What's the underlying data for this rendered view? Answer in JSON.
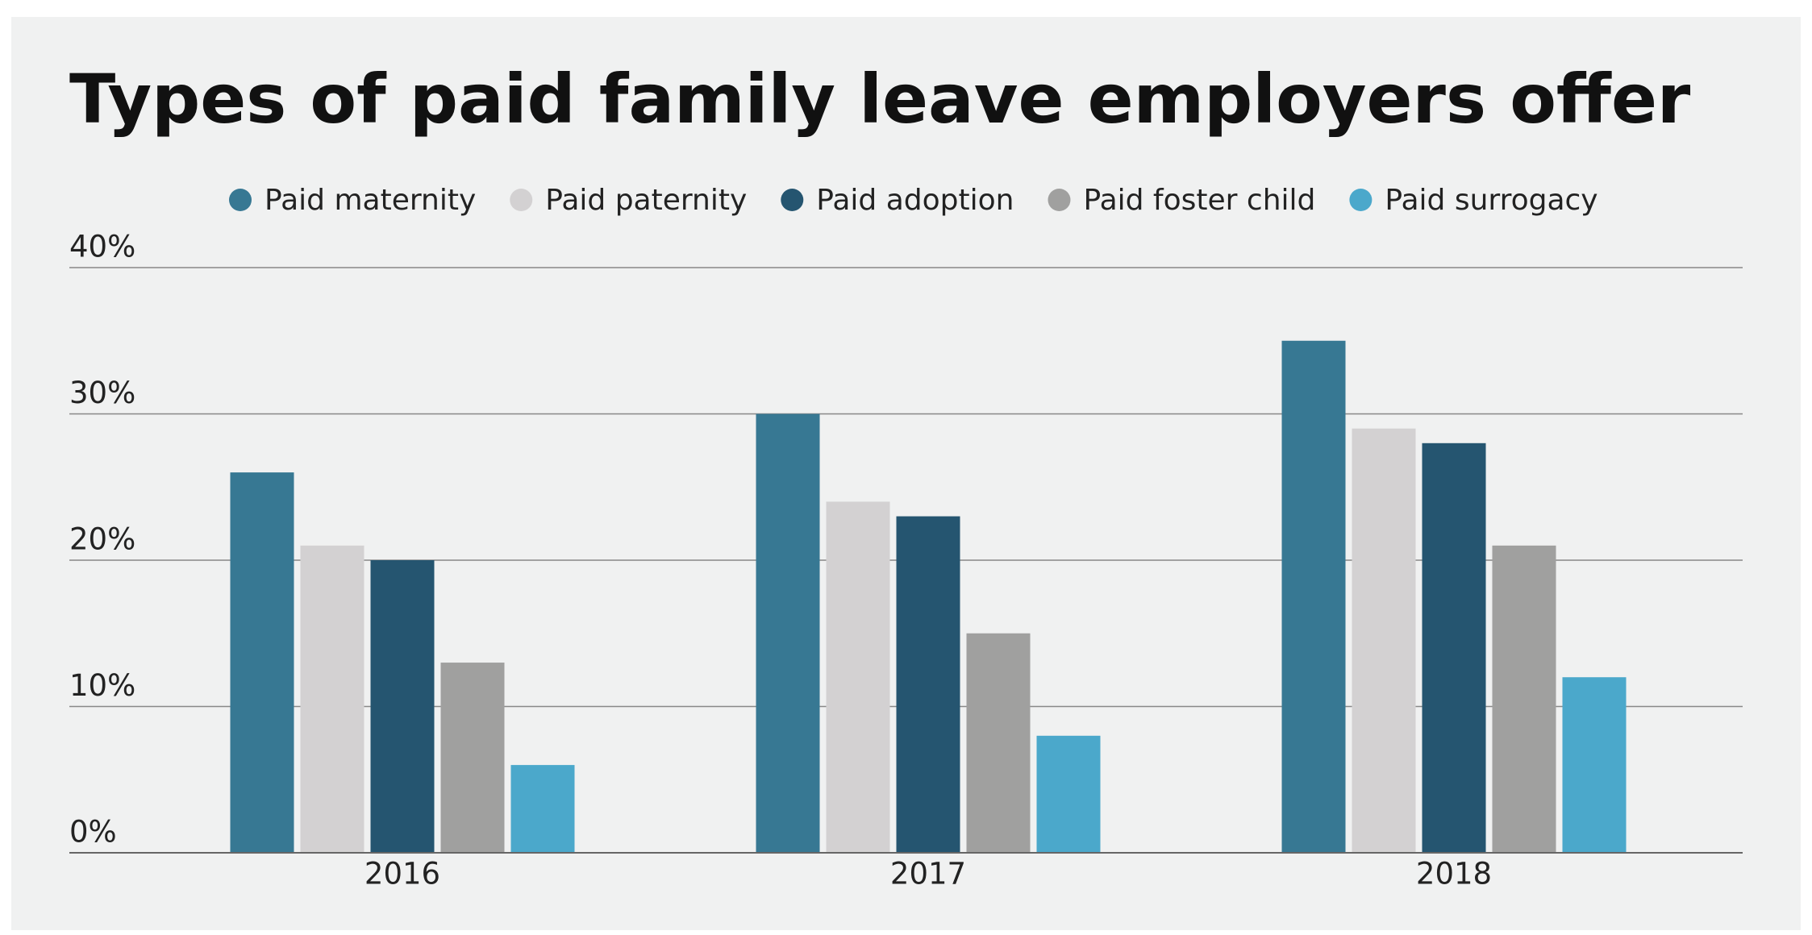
{
  "chart_data": {
    "type": "bar",
    "title": "Types of paid family leave employers offer",
    "categories": [
      "2016",
      "2017",
      "2018"
    ],
    "series": [
      {
        "name": "Paid maternity",
        "color": "#377893",
        "values": [
          26,
          30,
          35
        ]
      },
      {
        "name": "Paid paternity",
        "color": "#d3d1d2",
        "values": [
          21,
          24,
          29
        ]
      },
      {
        "name": "Paid adoption",
        "color": "#255570",
        "values": [
          20,
          23,
          28
        ]
      },
      {
        "name": "Paid foster child",
        "color": "#a0a09f",
        "values": [
          13,
          15,
          21
        ]
      },
      {
        "name": "Paid surrogacy",
        "color": "#4ba8cb",
        "values": [
          6,
          8,
          12
        ]
      }
    ],
    "ylim": [
      0,
      40
    ],
    "yticks": [
      {
        "value": 0,
        "label": "0%"
      },
      {
        "value": 10,
        "label": "10%"
      },
      {
        "value": 20,
        "label": "20%"
      },
      {
        "value": 30,
        "label": "30%"
      },
      {
        "value": 40,
        "label": "40%"
      }
    ],
    "grid": true,
    "legend": "top"
  }
}
